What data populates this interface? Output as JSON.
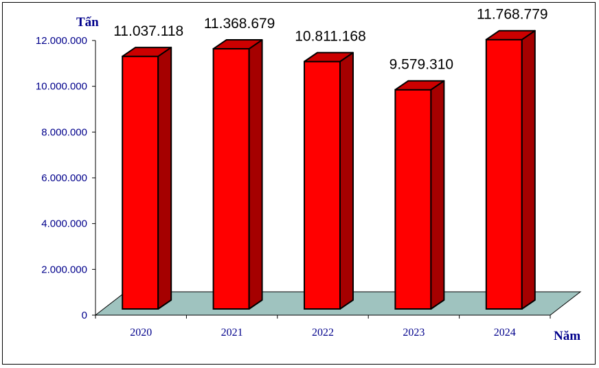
{
  "chart_data": {
    "type": "bar",
    "style": "3d",
    "y_unit_label": "Tấn",
    "x_unit_label": "Năm",
    "categories": [
      "2020",
      "2021",
      "2022",
      "2023",
      "2024"
    ],
    "values": [
      11037118,
      11368679,
      10811168,
      9579310,
      11768779
    ],
    "value_labels": [
      "11.037.118",
      "11.368.679",
      "10.811.168",
      "9.579.310",
      "11.768.779"
    ],
    "y_ticks": [
      0,
      2000000,
      4000000,
      6000000,
      8000000,
      10000000,
      12000000
    ],
    "y_tick_labels": [
      "0",
      "2.000.000",
      "4.000.000",
      "6.000.000",
      "8.000.000",
      "10.000.000",
      "12.000.000"
    ],
    "ylim": [
      0,
      12000000
    ],
    "grid": false,
    "legend": false
  },
  "colors": {
    "bar_front": "#ff0000",
    "bar_side": "#a50000",
    "bar_top": "#cc0000",
    "floor": "#9fc3bf",
    "axis_text": "#00008b",
    "data_label_text": "#000000"
  }
}
